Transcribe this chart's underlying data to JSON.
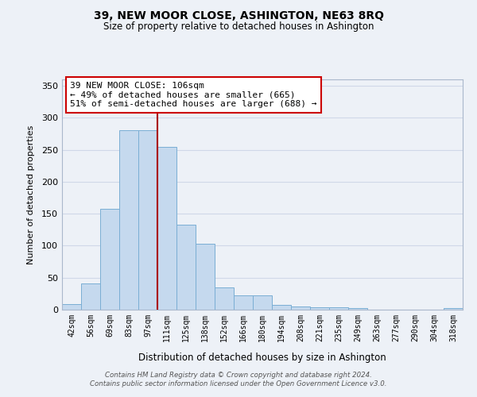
{
  "title": "39, NEW MOOR CLOSE, ASHINGTON, NE63 8RQ",
  "subtitle": "Size of property relative to detached houses in Ashington",
  "xlabel": "Distribution of detached houses by size in Ashington",
  "ylabel": "Number of detached properties",
  "bar_labels": [
    "42sqm",
    "56sqm",
    "69sqm",
    "83sqm",
    "97sqm",
    "111sqm",
    "125sqm",
    "138sqm",
    "152sqm",
    "166sqm",
    "180sqm",
    "194sqm",
    "208sqm",
    "221sqm",
    "235sqm",
    "249sqm",
    "263sqm",
    "277sqm",
    "290sqm",
    "304sqm",
    "318sqm"
  ],
  "bar_values": [
    9,
    41,
    158,
    281,
    281,
    255,
    133,
    103,
    35,
    22,
    22,
    7,
    5,
    4,
    4,
    3,
    0,
    0,
    0,
    0,
    2
  ],
  "bar_color": "#c5d9ee",
  "bar_edge_color": "#7aaed4",
  "highlight_index": 4,
  "highlight_color": "#aa0000",
  "ylim": [
    0,
    360
  ],
  "yticks": [
    0,
    50,
    100,
    150,
    200,
    250,
    300,
    350
  ],
  "annotation_line1": "39 NEW MOOR CLOSE: 106sqm",
  "annotation_line2": "← 49% of detached houses are smaller (665)",
  "annotation_line3": "51% of semi-detached houses are larger (688) →",
  "footer_line1": "Contains HM Land Registry data © Crown copyright and database right 2024.",
  "footer_line2": "Contains public sector information licensed under the Open Government Licence v3.0.",
  "background_color": "#edf1f7",
  "grid_color": "#d0d8e8"
}
